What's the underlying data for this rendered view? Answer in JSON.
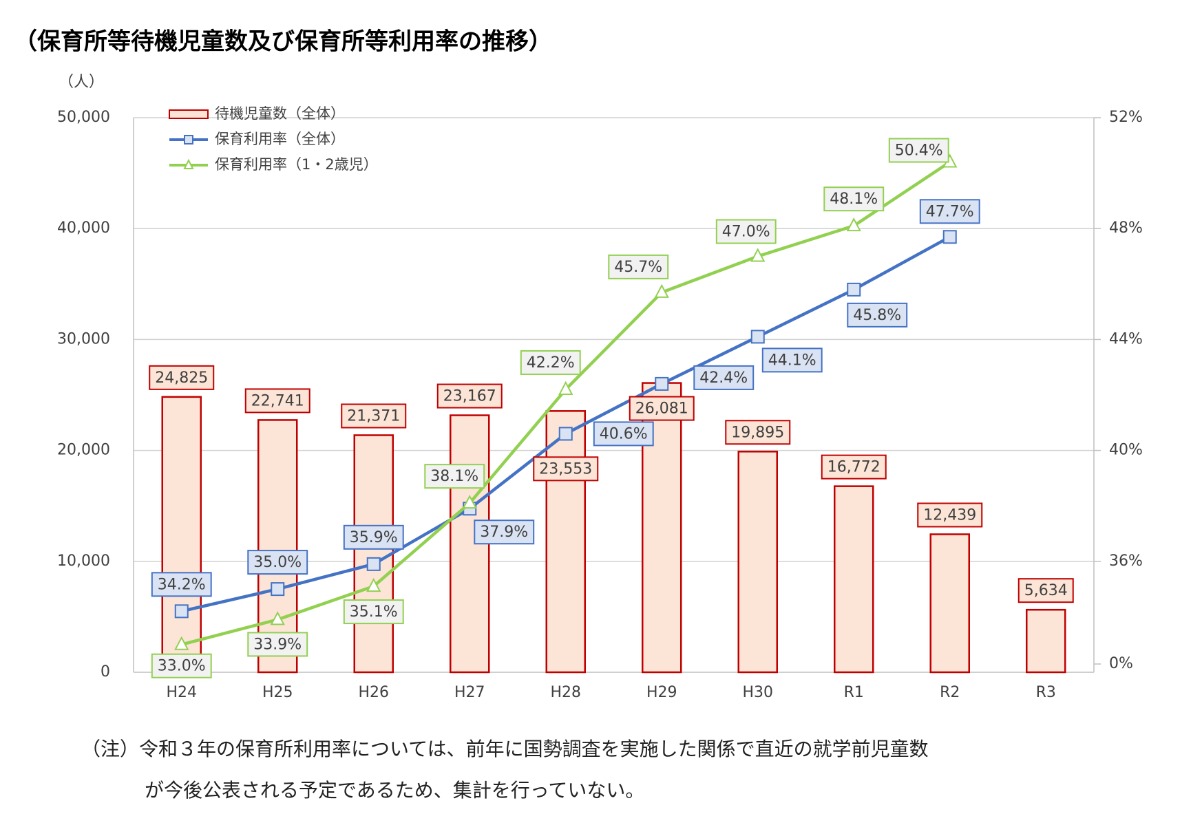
{
  "chart_data": {
    "type": "combo",
    "title": "（保育所等待機児童数及び保育所等利用率の推移）",
    "y_unit_label": "（人）",
    "note": [
      "（注）令和３年の保育所利用率については、前年に国勢調査を実施した関係で直近の就学前児童数",
      "が今後公表される予定であるため、集計を行っていない。"
    ],
    "categories": [
      "H24",
      "H25",
      "H26",
      "H27",
      "H28",
      "H29",
      "H30",
      "R1",
      "R2",
      "R3"
    ],
    "ylim": [
      0,
      50000
    ],
    "yticks": [
      0,
      {
        "value": 10000,
        "label": "10,000"
      },
      {
        "value": 20000,
        "label": "20,000"
      },
      {
        "value": 30000,
        "label": "30,000"
      },
      {
        "value": 40000,
        "label": "40,000"
      },
      {
        "value": 50000,
        "label": "50,000"
      }
    ],
    "y2lim": [
      32,
      52
    ],
    "y2ticks": [
      {
        "value": 36,
        "label": "36%"
      },
      {
        "value": 40,
        "label": "40%"
      },
      {
        "value": 44,
        "label": "44%"
      },
      {
        "value": 48,
        "label": "48%"
      },
      {
        "value": 52,
        "label": "52%"
      }
    ],
    "y2_axis_break": {
      "value": 0,
      "label": "0%"
    },
    "grid": true,
    "legend": "top-left",
    "series": [
      {
        "name": "待機児童数（全体）",
        "type": "bar",
        "color": "#c00000",
        "fill": "#fce4d6",
        "values": [
          24825,
          22741,
          21371,
          23167,
          23553,
          26081,
          19895,
          16772,
          12439,
          5634
        ],
        "value_labels": [
          "24,825",
          "22,741",
          "21,371",
          "23,167",
          "23,553",
          "26,081",
          "19,895",
          "16,772",
          "12,439",
          "5,634"
        ]
      },
      {
        "name": "保育利用率（全体）",
        "type": "line",
        "axis": "y2",
        "marker": "square",
        "color": "#4472c4",
        "fill": "#dae3f3",
        "values": [
          34.2,
          35.0,
          35.9,
          37.9,
          40.6,
          42.4,
          44.1,
          45.8,
          47.7,
          null
        ],
        "value_labels": [
          "34.2%",
          "35.0%",
          "35.9%",
          "37.9%",
          "40.6%",
          "42.4%",
          "44.1%",
          "45.8%",
          "47.7%",
          null
        ]
      },
      {
        "name": "保育利用率（1・2歳児）",
        "type": "line",
        "axis": "y2",
        "marker": "triangle",
        "color": "#92d050",
        "fill": "#f2f2f2",
        "values": [
          33.0,
          33.9,
          35.1,
          38.1,
          42.2,
          45.7,
          47.0,
          48.1,
          50.4,
          null
        ],
        "value_labels": [
          "33.0%",
          "33.9%",
          "35.1%",
          "38.1%",
          "42.2%",
          "45.7%",
          "47.0%",
          "48.1%",
          "50.4%",
          null
        ]
      }
    ]
  }
}
